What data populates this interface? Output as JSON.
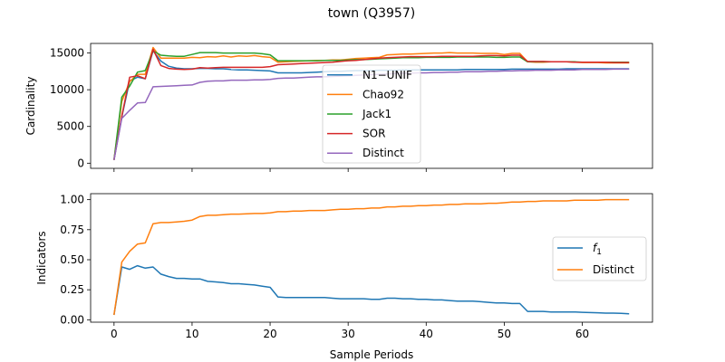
{
  "title": "town (Q3957)",
  "xlabel": "Sample Periods",
  "chart_data": [
    {
      "type": "line",
      "ylabel": "Cardinality",
      "xlim": [
        -3,
        69
      ],
      "ylim": [
        -700,
        16300
      ],
      "xticks": [
        0,
        10,
        20,
        30,
        40,
        50,
        60
      ],
      "yticks": [
        0,
        5000,
        10000,
        15000
      ],
      "ytick_labels": [
        "0",
        "5000",
        "10000",
        "15000"
      ],
      "show_x_tick_labels": false,
      "legend": "center",
      "grid": false,
      "series": [
        {
          "name": "N1−UNIF",
          "color": "#1f77b4",
          "x": [
            0,
            1,
            2,
            3,
            4,
            5,
            6,
            7,
            8,
            9,
            10,
            11,
            12,
            13,
            14,
            15,
            16,
            17,
            18,
            19,
            20,
            21,
            22,
            23,
            24,
            25,
            26,
            27,
            28,
            29,
            30,
            31,
            32,
            33,
            34,
            35,
            36,
            37,
            38,
            39,
            40,
            41,
            42,
            43,
            44,
            45,
            46,
            47,
            48,
            49,
            50,
            51,
            52,
            53,
            54,
            55,
            56,
            57,
            58,
            59,
            60,
            61,
            62,
            63,
            64,
            65,
            66
          ],
          "y": [
            450,
            6300,
            11200,
            11700,
            11500,
            15300,
            13900,
            13200,
            12950,
            12850,
            12850,
            12900,
            12900,
            12850,
            12850,
            12750,
            12700,
            12700,
            12650,
            12600,
            12550,
            12300,
            12300,
            12300,
            12300,
            12350,
            12400,
            12450,
            12500,
            12500,
            12550,
            12600,
            12600,
            12600,
            12650,
            12650,
            12650,
            12700,
            12700,
            12700,
            12700,
            12700,
            12700,
            12700,
            12700,
            12750,
            12750,
            12750,
            12750,
            12750,
            12750,
            12800,
            12800,
            12800,
            12800,
            12800,
            12800,
            12800,
            12850,
            12850,
            12850,
            12850,
            12850,
            12850,
            12850,
            12850,
            12850
          ]
        },
        {
          "name": "Chao92",
          "color": "#ff7f0e",
          "x": [
            0,
            1,
            2,
            3,
            4,
            5,
            6,
            7,
            8,
            9,
            10,
            11,
            12,
            13,
            14,
            15,
            16,
            17,
            18,
            19,
            20,
            21,
            22,
            23,
            24,
            25,
            26,
            27,
            28,
            29,
            30,
            31,
            32,
            33,
            34,
            35,
            36,
            37,
            38,
            39,
            40,
            41,
            42,
            43,
            44,
            45,
            46,
            47,
            48,
            49,
            50,
            51,
            52,
            53,
            54,
            55,
            56,
            57,
            58,
            59,
            60,
            61,
            62,
            63,
            64,
            65,
            66
          ],
          "y": [
            450,
            8400,
            11100,
            12100,
            12100,
            15750,
            14300,
            14300,
            14300,
            14300,
            14400,
            14350,
            14500,
            14450,
            14600,
            14450,
            14600,
            14550,
            14650,
            14500,
            14400,
            13750,
            13800,
            13850,
            13900,
            13950,
            14000,
            14000,
            14050,
            14050,
            14150,
            14250,
            14300,
            14350,
            14400,
            14750,
            14800,
            14850,
            14850,
            14900,
            14950,
            15000,
            15000,
            15050,
            15000,
            15000,
            15000,
            14950,
            14950,
            14950,
            14800,
            14950,
            14950,
            13800,
            13750,
            13750,
            13800,
            13800,
            13800,
            13750,
            13700,
            13700,
            13700,
            13650,
            13650,
            13650,
            13650
          ]
        },
        {
          "name": "Jack1",
          "color": "#2ca02c",
          "x": [
            0,
            1,
            2,
            3,
            4,
            5,
            6,
            7,
            8,
            9,
            10,
            11,
            12,
            13,
            14,
            15,
            16,
            17,
            18,
            19,
            20,
            21,
            22,
            23,
            24,
            25,
            26,
            27,
            28,
            29,
            30,
            31,
            32,
            33,
            34,
            35,
            36,
            37,
            38,
            39,
            40,
            41,
            42,
            43,
            44,
            45,
            46,
            47,
            48,
            49,
            50,
            51,
            52,
            53,
            54,
            55,
            56,
            57,
            58,
            59,
            60,
            61,
            62,
            63,
            64,
            65,
            66
          ],
          "y": [
            450,
            9000,
            10500,
            12400,
            12600,
            15300,
            14700,
            14600,
            14550,
            14550,
            14800,
            15050,
            15050,
            15050,
            15000,
            15000,
            15000,
            15000,
            15000,
            14900,
            14750,
            13950,
            13950,
            13950,
            13950,
            13950,
            13950,
            14000,
            14000,
            14000,
            14050,
            14100,
            14100,
            14150,
            14200,
            14250,
            14300,
            14350,
            14350,
            14350,
            14400,
            14400,
            14400,
            14400,
            14450,
            14450,
            14450,
            14450,
            14450,
            14400,
            14400,
            14450,
            14450,
            13800,
            13800,
            13800,
            13800,
            13800,
            13800,
            13800,
            13750,
            13750,
            13750,
            13750,
            13750,
            13750,
            13750
          ]
        },
        {
          "name": "SOR",
          "color": "#d62728",
          "x": [
            0,
            1,
            2,
            3,
            4,
            5,
            6,
            7,
            8,
            9,
            10,
            11,
            12,
            13,
            14,
            15,
            16,
            17,
            18,
            19,
            20,
            21,
            22,
            23,
            24,
            25,
            26,
            27,
            28,
            29,
            30,
            31,
            32,
            33,
            34,
            35,
            36,
            37,
            38,
            39,
            40,
            41,
            42,
            43,
            44,
            45,
            46,
            47,
            48,
            49,
            50,
            51,
            52,
            53,
            54,
            55,
            56,
            57,
            58,
            59,
            60,
            61,
            62,
            63,
            64,
            65,
            66
          ],
          "y": [
            450,
            6400,
            11700,
            11900,
            11500,
            15500,
            13300,
            12900,
            12800,
            12750,
            12800,
            13000,
            12950,
            13000,
            13050,
            13050,
            13050,
            13050,
            13050,
            13050,
            13150,
            13400,
            13450,
            13500,
            13550,
            13600,
            13650,
            13700,
            13750,
            13850,
            13950,
            14000,
            14100,
            14200,
            14300,
            14350,
            14400,
            14450,
            14500,
            14500,
            14500,
            14500,
            14550,
            14550,
            14550,
            14550,
            14550,
            14600,
            14650,
            14650,
            14600,
            14700,
            14700,
            13850,
            13850,
            13850,
            13800,
            13800,
            13800,
            13750,
            13750,
            13750,
            13750,
            13750,
            13700,
            13700,
            13700
          ]
        },
        {
          "name": "Distinct",
          "color": "#9467bd",
          "x": [
            0,
            1,
            2,
            3,
            4,
            5,
            6,
            7,
            8,
            9,
            10,
            11,
            12,
            13,
            14,
            15,
            16,
            17,
            18,
            19,
            20,
            21,
            22,
            23,
            24,
            25,
            26,
            27,
            28,
            29,
            30,
            31,
            32,
            33,
            34,
            35,
            36,
            37,
            38,
            39,
            40,
            41,
            42,
            43,
            44,
            45,
            46,
            47,
            48,
            49,
            50,
            51,
            52,
            53,
            54,
            55,
            56,
            57,
            58,
            59,
            60,
            61,
            62,
            63,
            64,
            65,
            66
          ],
          "y": [
            450,
            6100,
            7200,
            8200,
            8250,
            10400,
            10450,
            10500,
            10550,
            10600,
            10650,
            11000,
            11150,
            11200,
            11200,
            11300,
            11300,
            11300,
            11350,
            11350,
            11400,
            11550,
            11600,
            11600,
            11650,
            11700,
            11750,
            11750,
            11800,
            11850,
            11900,
            11950,
            12000,
            12050,
            12100,
            12150,
            12200,
            12250,
            12250,
            12300,
            12300,
            12350,
            12350,
            12400,
            12400,
            12450,
            12450,
            12450,
            12500,
            12500,
            12550,
            12550,
            12600,
            12600,
            12650,
            12650,
            12650,
            12700,
            12700,
            12700,
            12750,
            12750,
            12750,
            12750,
            12800,
            12800,
            12800
          ]
        }
      ]
    },
    {
      "type": "line",
      "ylabel": "Indicators",
      "xlabel": "Sample Periods",
      "xlim": [
        -3,
        69
      ],
      "ylim": [
        -0.02,
        1.05
      ],
      "xticks": [
        0,
        10,
        20,
        30,
        40,
        50,
        60
      ],
      "xtick_labels": [
        "0",
        "10",
        "20",
        "30",
        "40",
        "50",
        "60"
      ],
      "yticks": [
        0,
        0.25,
        0.5,
        0.75,
        1.0
      ],
      "ytick_labels": [
        "0.00",
        "0.25",
        "0.50",
        "0.75",
        "1.00"
      ],
      "legend": "right",
      "grid": false,
      "series": [
        {
          "name": "f",
          "name_sub": "1",
          "color": "#1f77b4",
          "x": [
            0,
            1,
            2,
            3,
            4,
            5,
            6,
            7,
            8,
            9,
            10,
            11,
            12,
            13,
            14,
            15,
            16,
            17,
            18,
            19,
            20,
            21,
            22,
            23,
            24,
            25,
            26,
            27,
            28,
            29,
            30,
            31,
            32,
            33,
            34,
            35,
            36,
            37,
            38,
            39,
            40,
            41,
            42,
            43,
            44,
            45,
            46,
            47,
            48,
            49,
            50,
            51,
            52,
            53,
            54,
            55,
            56,
            57,
            58,
            59,
            60,
            61,
            62,
            63,
            64,
            65,
            66
          ],
          "y": [
            0.04,
            0.44,
            0.42,
            0.45,
            0.43,
            0.44,
            0.38,
            0.36,
            0.345,
            0.345,
            0.34,
            0.34,
            0.32,
            0.315,
            0.31,
            0.3,
            0.3,
            0.295,
            0.29,
            0.28,
            0.27,
            0.19,
            0.185,
            0.185,
            0.185,
            0.185,
            0.185,
            0.185,
            0.18,
            0.175,
            0.175,
            0.175,
            0.175,
            0.17,
            0.17,
            0.18,
            0.18,
            0.175,
            0.175,
            0.17,
            0.17,
            0.165,
            0.165,
            0.16,
            0.155,
            0.155,
            0.155,
            0.15,
            0.145,
            0.14,
            0.14,
            0.135,
            0.135,
            0.07,
            0.07,
            0.07,
            0.065,
            0.065,
            0.065,
            0.065,
            0.062,
            0.06,
            0.058,
            0.055,
            0.055,
            0.053,
            0.05
          ]
        },
        {
          "name": "Distinct",
          "color": "#ff7f0e",
          "x": [
            0,
            1,
            2,
            3,
            4,
            5,
            6,
            7,
            8,
            9,
            10,
            11,
            12,
            13,
            14,
            15,
            16,
            17,
            18,
            19,
            20,
            21,
            22,
            23,
            24,
            25,
            26,
            27,
            28,
            29,
            30,
            31,
            32,
            33,
            34,
            35,
            36,
            37,
            38,
            39,
            40,
            41,
            42,
            43,
            44,
            45,
            46,
            47,
            48,
            49,
            50,
            51,
            52,
            53,
            54,
            55,
            56,
            57,
            58,
            59,
            60,
            61,
            62,
            63,
            64,
            65,
            66
          ],
          "y": [
            0.04,
            0.48,
            0.57,
            0.63,
            0.64,
            0.8,
            0.81,
            0.81,
            0.815,
            0.82,
            0.83,
            0.86,
            0.87,
            0.87,
            0.875,
            0.88,
            0.88,
            0.882,
            0.885,
            0.885,
            0.89,
            0.9,
            0.9,
            0.905,
            0.905,
            0.91,
            0.91,
            0.91,
            0.915,
            0.92,
            0.92,
            0.925,
            0.925,
            0.93,
            0.93,
            0.94,
            0.94,
            0.945,
            0.945,
            0.95,
            0.95,
            0.955,
            0.955,
            0.96,
            0.96,
            0.965,
            0.965,
            0.965,
            0.97,
            0.97,
            0.975,
            0.98,
            0.98,
            0.985,
            0.985,
            0.99,
            0.99,
            0.99,
            0.99,
            0.995,
            0.995,
            0.995,
            0.995,
            1.0,
            1.0,
            1.0,
            1.0
          ]
        }
      ]
    }
  ]
}
